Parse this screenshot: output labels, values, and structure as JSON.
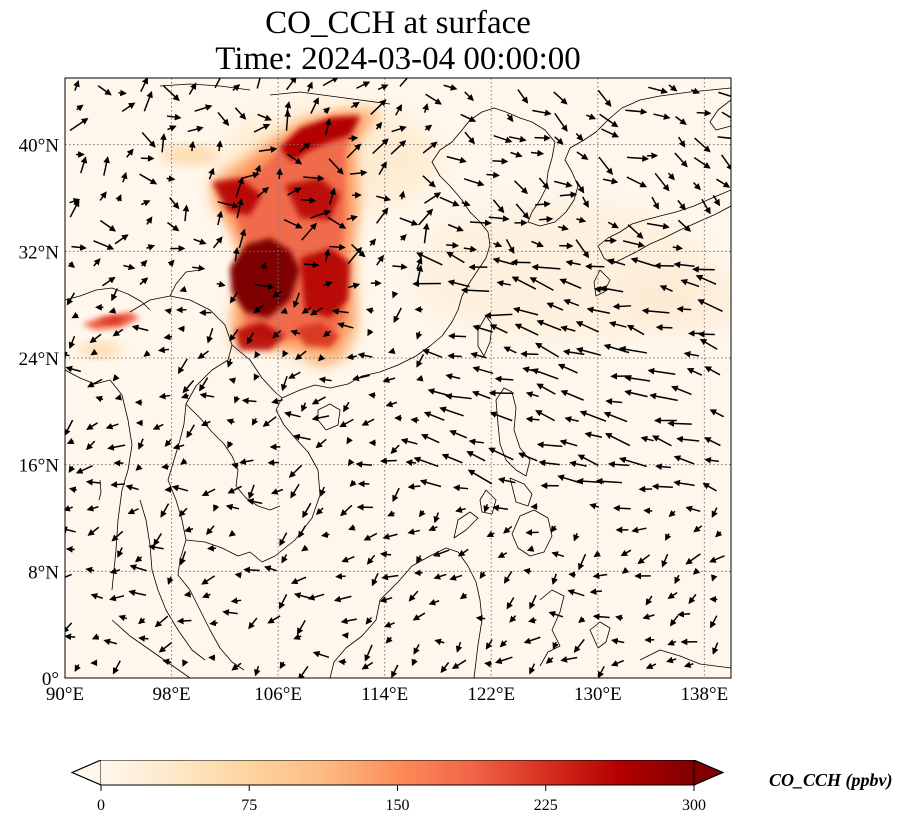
{
  "title": {
    "line1": "CO_CCH at surface",
    "line2": "Time: 2024-03-04 00:00:00"
  },
  "map": {
    "lon_range": [
      90,
      140
    ],
    "lat_range": [
      0,
      45
    ],
    "lon_ticks": [
      {
        "value": 90,
        "label": "90°E"
      },
      {
        "value": 98,
        "label": "98°E"
      },
      {
        "value": 106,
        "label": "106°E"
      },
      {
        "value": 114,
        "label": "114°E"
      },
      {
        "value": 122,
        "label": "122°E"
      },
      {
        "value": 130,
        "label": "130°E"
      },
      {
        "value": 138,
        "label": "138°E"
      }
    ],
    "lat_ticks": [
      {
        "value": 0,
        "label": "0°"
      },
      {
        "value": 8,
        "label": "8°N"
      },
      {
        "value": 16,
        "label": "16°N"
      },
      {
        "value": 24,
        "label": "24°N"
      },
      {
        "value": 32,
        "label": "32°N"
      },
      {
        "value": 40,
        "label": "40°N"
      }
    ],
    "gridlines": true,
    "wind_vectors": true,
    "coastlines": true
  },
  "colorbar": {
    "label": "CO_CCH (ppbv)",
    "min": 0,
    "max": 300,
    "extend": "both",
    "ticks": [
      "0",
      "75",
      "150",
      "225",
      "300"
    ],
    "colormap": "OrRd",
    "colors": [
      "#fff7ec",
      "#fee8c8",
      "#fdd49e",
      "#fdbb84",
      "#fc8d59",
      "#ef6548",
      "#d7301f",
      "#b30000",
      "#7f0000"
    ]
  }
}
